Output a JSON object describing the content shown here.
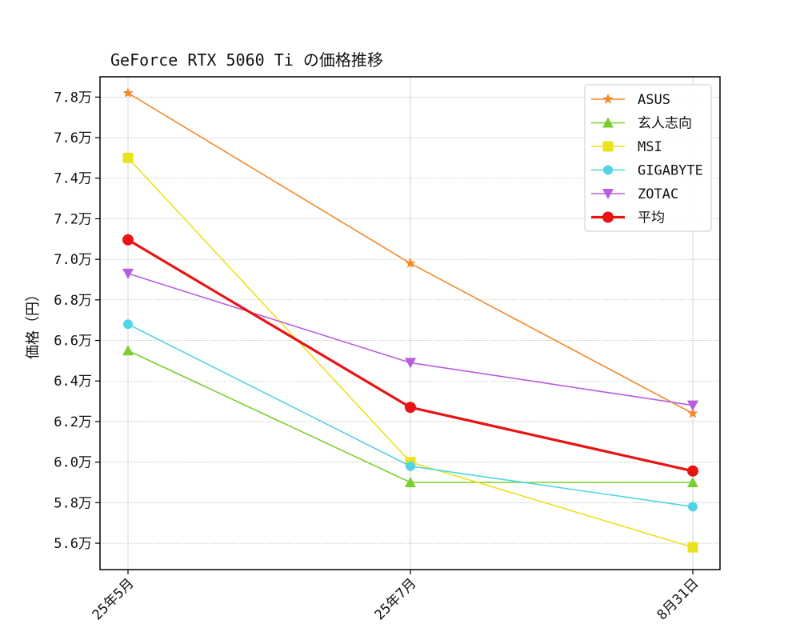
{
  "chart_data": {
    "type": "line",
    "title": "GeForce RTX 5060 Ti の価格推移",
    "xlabel": "",
    "ylabel": "価格（円）",
    "categories": [
      "25年5月",
      "25年7月",
      "8月31日"
    ],
    "y_ticks": [
      56000,
      58000,
      60000,
      62000,
      64000,
      66000,
      68000,
      70000,
      72000,
      74000,
      76000,
      78000
    ],
    "y_tick_labels": [
      "5.6万",
      "5.8万",
      "6.0万",
      "6.2万",
      "6.4万",
      "6.6万",
      "6.8万",
      "7.0万",
      "7.2万",
      "7.4万",
      "7.6万",
      "7.8万"
    ],
    "ylim": [
      54700,
      79000
    ],
    "grid": true,
    "legend_position": "top-right",
    "series": [
      {
        "name": "ASUS",
        "values": [
          78200,
          69800,
          62400
        ],
        "color": "#f28a2a",
        "marker": "star"
      },
      {
        "name": "玄人志向",
        "values": [
          65500,
          59000,
          59000
        ],
        "color": "#7ccf2f",
        "marker": "triangle-up"
      },
      {
        "name": "MSI",
        "values": [
          75000,
          60000,
          55800
        ],
        "color": "#ebe21e",
        "marker": "square"
      },
      {
        "name": "GIGABYTE",
        "values": [
          66800,
          59800,
          57800
        ],
        "color": "#4fd5e4",
        "marker": "circle"
      },
      {
        "name": "ZOTAC",
        "values": [
          69300,
          64900,
          62800
        ],
        "color": "#b85ce0",
        "marker": "triangle-down"
      },
      {
        "name": "平均",
        "values": [
          70960,
          62700,
          59560
        ],
        "color": "#e81414",
        "marker": "circle",
        "bold": true
      }
    ]
  }
}
